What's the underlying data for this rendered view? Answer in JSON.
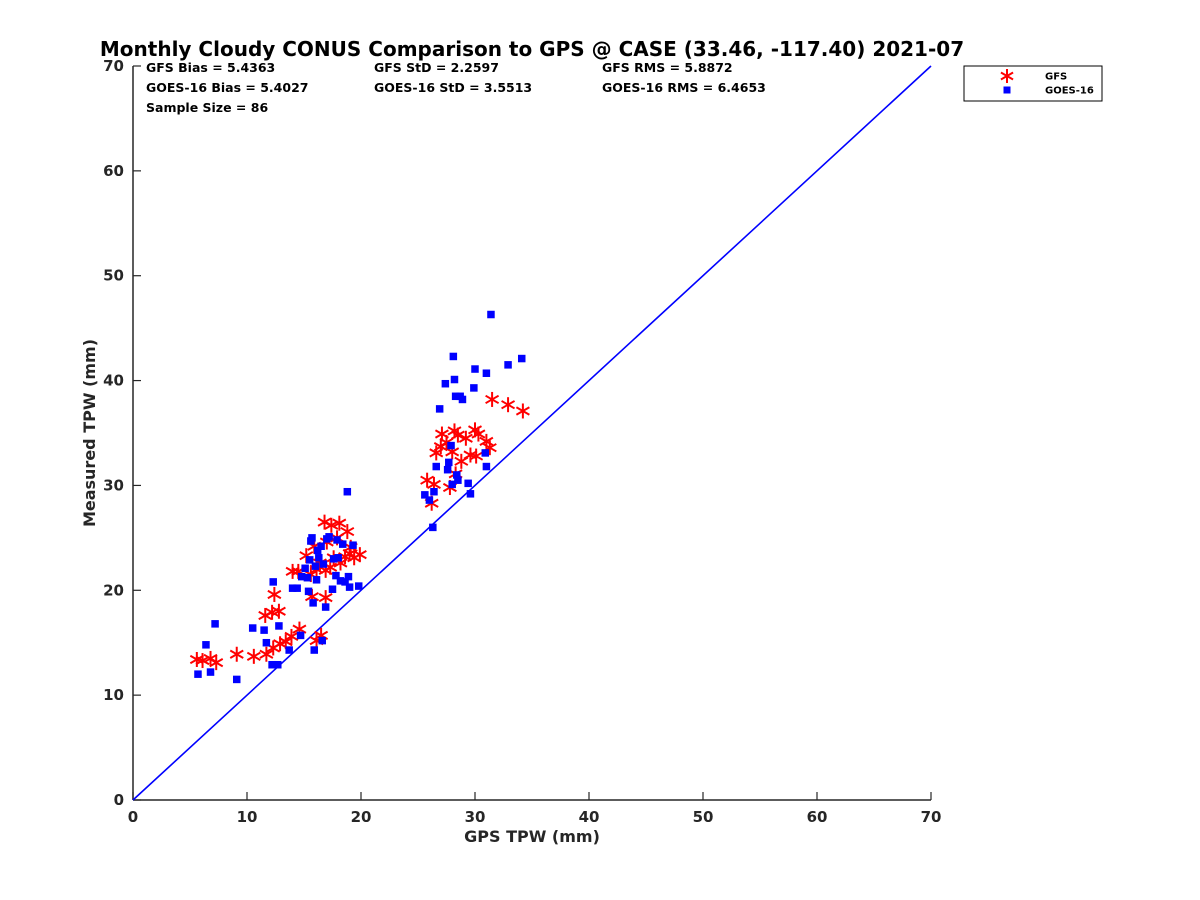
{
  "chart_data": {
    "type": "scatter",
    "title": "Monthly Cloudy CONUS Comparison to GPS @ CASE (33.46, -117.40) 2021-07",
    "xlabel": "GPS TPW (mm)",
    "ylabel": "Measured TPW (mm)",
    "xlim": [
      0,
      70
    ],
    "ylim": [
      0,
      70
    ],
    "xticks": [
      "0",
      "10",
      "20",
      "30",
      "40",
      "50",
      "60",
      "70"
    ],
    "yticks": [
      "0",
      "10",
      "20",
      "30",
      "40",
      "50",
      "60",
      "70"
    ],
    "grid": false,
    "legend_position": "top-right (outside plot)",
    "stats": [
      [
        "GFS Bias = 5.4363",
        "GFS StD = 2.2597",
        "GFS RMS = 5.8872"
      ],
      [
        "GOES-16 Bias = 5.4027",
        "GOES-16 StD = 3.5513",
        "GOES-16 RMS = 6.4653"
      ],
      [
        "Sample Size = 86"
      ]
    ],
    "reference_line": {
      "x": [
        0,
        70
      ],
      "y": [
        0,
        70
      ],
      "color": "#0000ff"
    },
    "series": [
      {
        "name": "GFS",
        "marker": "asterisk",
        "color": "#ff0000",
        "points": [
          [
            5.6,
            13.4
          ],
          [
            6.1,
            13.3
          ],
          [
            6.8,
            13.5
          ],
          [
            7.3,
            13.1
          ],
          [
            9.1,
            13.9
          ],
          [
            10.6,
            13.7
          ],
          [
            11.7,
            13.9
          ],
          [
            12.3,
            14.5
          ],
          [
            12.9,
            14.9
          ],
          [
            13.4,
            15.1
          ],
          [
            13.9,
            15.6
          ],
          [
            14.6,
            16.3
          ],
          [
            16.1,
            15.2
          ],
          [
            16.5,
            15.7
          ],
          [
            11.6,
            17.6
          ],
          [
            12.2,
            17.9
          ],
          [
            12.8,
            18.0
          ],
          [
            12.4,
            19.6
          ],
          [
            15.7,
            19.4
          ],
          [
            16.9,
            19.3
          ],
          [
            14.0,
            21.8
          ],
          [
            14.5,
            21.8
          ],
          [
            15.2,
            23.3
          ],
          [
            15.6,
            21.5
          ],
          [
            16.1,
            22.0
          ],
          [
            16.4,
            22.6
          ],
          [
            16.9,
            21.9
          ],
          [
            17.3,
            22.2
          ],
          [
            17.6,
            23.1
          ],
          [
            18.2,
            22.6
          ],
          [
            18.6,
            23.2
          ],
          [
            19.0,
            23.5
          ],
          [
            19.4,
            23.1
          ],
          [
            19.9,
            23.4
          ],
          [
            15.9,
            24.2
          ],
          [
            17.0,
            24.6
          ],
          [
            16.8,
            26.5
          ],
          [
            17.4,
            26.2
          ],
          [
            18.1,
            26.4
          ],
          [
            18.8,
            25.6
          ],
          [
            19.1,
            24.1
          ],
          [
            17.9,
            25.0
          ],
          [
            25.8,
            30.5
          ],
          [
            26.2,
            28.3
          ],
          [
            26.4,
            30.1
          ],
          [
            26.6,
            33.1
          ],
          [
            27.0,
            33.7
          ],
          [
            27.1,
            34.9
          ],
          [
            27.5,
            34.1
          ],
          [
            27.8,
            29.8
          ],
          [
            28.0,
            33.2
          ],
          [
            28.2,
            35.2
          ],
          [
            28.5,
            34.8
          ],
          [
            28.3,
            31.1
          ],
          [
            28.8,
            32.3
          ],
          [
            29.2,
            34.5
          ],
          [
            29.6,
            32.9
          ],
          [
            30.0,
            35.3
          ],
          [
            30.3,
            34.9
          ],
          [
            30.1,
            32.8
          ],
          [
            31.0,
            34.2
          ],
          [
            31.3,
            33.6
          ],
          [
            31.5,
            38.2
          ],
          [
            32.9,
            37.7
          ],
          [
            34.2,
            37.1
          ]
        ]
      },
      {
        "name": "GOES-16",
        "marker": "square",
        "color": "#0000ff",
        "points": [
          [
            5.7,
            12.0
          ],
          [
            6.4,
            14.8
          ],
          [
            6.8,
            12.2
          ],
          [
            7.2,
            16.8
          ],
          [
            9.1,
            11.5
          ],
          [
            10.5,
            16.4
          ],
          [
            11.5,
            16.2
          ],
          [
            11.7,
            15.0
          ],
          [
            12.2,
            12.9
          ],
          [
            12.3,
            20.8
          ],
          [
            12.7,
            12.9
          ],
          [
            12.8,
            16.6
          ],
          [
            13.7,
            14.3
          ],
          [
            14.0,
            20.2
          ],
          [
            14.4,
            20.2
          ],
          [
            14.7,
            15.7
          ],
          [
            14.8,
            21.3
          ],
          [
            15.1,
            22.1
          ],
          [
            15.3,
            21.2
          ],
          [
            15.5,
            22.9
          ],
          [
            15.6,
            24.7
          ],
          [
            15.7,
            25.0
          ],
          [
            15.8,
            18.8
          ],
          [
            15.9,
            14.3
          ],
          [
            16.0,
            22.3
          ],
          [
            16.1,
            21.0
          ],
          [
            16.3,
            23.1
          ],
          [
            16.5,
            24.2
          ],
          [
            16.6,
            15.2
          ],
          [
            16.7,
            22.5
          ],
          [
            16.9,
            18.4
          ],
          [
            17.0,
            24.9
          ],
          [
            17.2,
            25.1
          ],
          [
            17.5,
            20.1
          ],
          [
            17.6,
            23.0
          ],
          [
            17.8,
            21.4
          ],
          [
            17.9,
            24.8
          ],
          [
            18.0,
            23.1
          ],
          [
            18.2,
            20.9
          ],
          [
            18.4,
            24.4
          ],
          [
            18.6,
            20.8
          ],
          [
            18.8,
            29.4
          ],
          [
            18.9,
            21.3
          ],
          [
            19.0,
            20.3
          ],
          [
            19.3,
            24.3
          ],
          [
            19.8,
            20.4
          ],
          [
            15.4,
            19.9
          ],
          [
            16.2,
            23.8
          ],
          [
            25.6,
            29.1
          ],
          [
            26.0,
            28.6
          ],
          [
            26.3,
            26.0
          ],
          [
            26.4,
            29.4
          ],
          [
            26.6,
            31.8
          ],
          [
            26.9,
            37.3
          ],
          [
            27.4,
            39.7
          ],
          [
            27.6,
            31.5
          ],
          [
            27.7,
            32.2
          ],
          [
            27.9,
            33.8
          ],
          [
            28.0,
            30.1
          ],
          [
            28.1,
            42.3
          ],
          [
            28.2,
            40.1
          ],
          [
            28.3,
            38.5
          ],
          [
            28.4,
            31.0
          ],
          [
            28.5,
            30.5
          ],
          [
            28.7,
            38.5
          ],
          [
            28.9,
            38.2
          ],
          [
            29.4,
            30.2
          ],
          [
            29.6,
            29.2
          ],
          [
            29.9,
            39.3
          ],
          [
            30.0,
            41.1
          ],
          [
            30.9,
            33.1
          ],
          [
            31.0,
            40.7
          ],
          [
            31.0,
            31.8
          ],
          [
            31.4,
            46.3
          ],
          [
            32.9,
            41.5
          ],
          [
            34.1,
            42.1
          ]
        ]
      }
    ]
  }
}
